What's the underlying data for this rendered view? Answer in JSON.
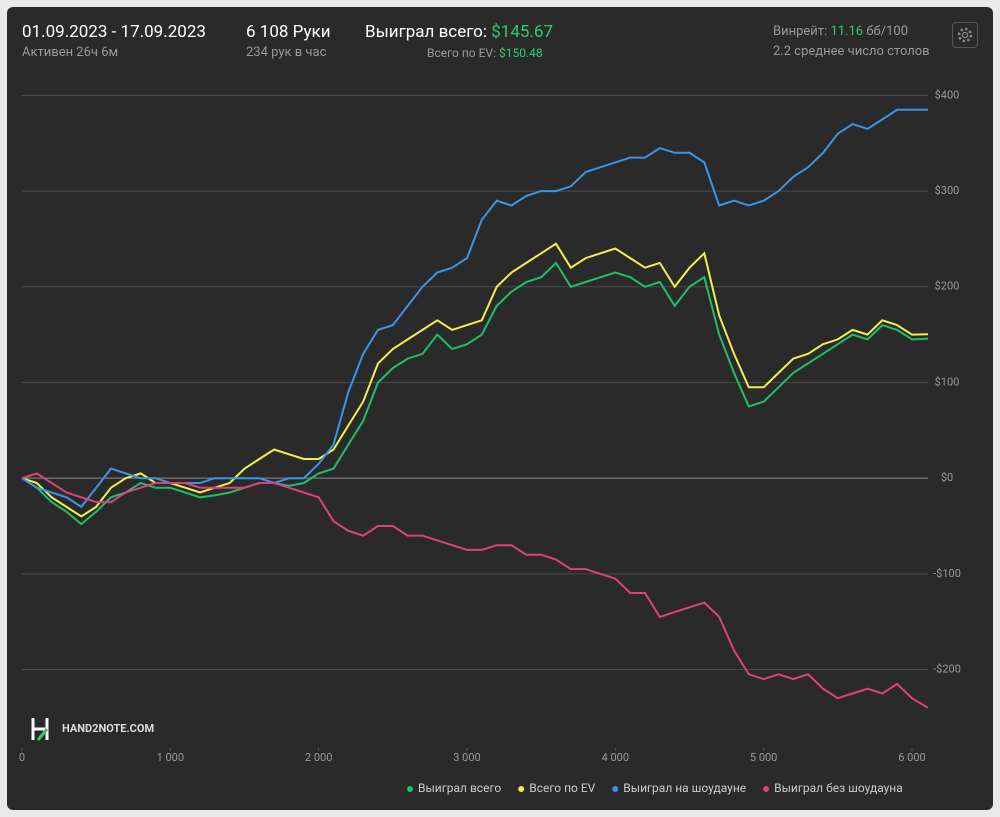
{
  "header": {
    "dates": "01.09.2023 - 17.09.2023",
    "active": "Активен 26ч 6м",
    "hands": "6 108 Руки",
    "hands_per_hour": "234 рук в час",
    "won_label": "Выиграл всего:",
    "won_value": "$145.67",
    "ev_label": "Всего по EV:",
    "ev_value": "$150.48",
    "winrate_label": "Винрейт:",
    "winrate_value": "11.16",
    "winrate_unit": "бб/100",
    "tables": "2.2 среднее число столов",
    "logo": "HAND2NOTE.COM"
  },
  "chart_data": {
    "type": "line",
    "x": [
      0,
      100,
      200,
      300,
      400,
      500,
      600,
      700,
      800,
      900,
      1000,
      1100,
      1200,
      1300,
      1400,
      1500,
      1600,
      1700,
      1800,
      1900,
      2000,
      2100,
      2200,
      2300,
      2400,
      2500,
      2600,
      2700,
      2800,
      2900,
      3000,
      3100,
      3200,
      3300,
      3400,
      3500,
      3600,
      3700,
      3800,
      3900,
      4000,
      4100,
      4200,
      4300,
      4400,
      4500,
      4600,
      4700,
      4800,
      4900,
      5000,
      5100,
      5200,
      5300,
      5400,
      5500,
      5600,
      5700,
      5800,
      5900,
      6000,
      6108
    ],
    "series": [
      {
        "name": "Выиграл всего",
        "color": "#1fbf6a",
        "values": [
          0,
          -10,
          -25,
          -35,
          -48,
          -35,
          -20,
          -15,
          -5,
          -10,
          -10,
          -15,
          -20,
          -18,
          -15,
          -10,
          -5,
          -5,
          -8,
          -5,
          5,
          10,
          35,
          60,
          100,
          115,
          125,
          130,
          150,
          135,
          140,
          150,
          180,
          195,
          205,
          210,
          225,
          200,
          205,
          210,
          215,
          210,
          200,
          205,
          180,
          200,
          210,
          150,
          110,
          75,
          80,
          95,
          110,
          120,
          130,
          140,
          150,
          145,
          160,
          155,
          145,
          145.67
        ]
      },
      {
        "name": "Всего по EV",
        "color": "#f1f04a",
        "values": [
          0,
          -5,
          -20,
          -30,
          -40,
          -30,
          -10,
          0,
          5,
          -5,
          -5,
          -10,
          -15,
          -10,
          -5,
          10,
          20,
          30,
          25,
          20,
          20,
          30,
          55,
          80,
          120,
          135,
          145,
          155,
          165,
          155,
          160,
          165,
          200,
          215,
          225,
          235,
          245,
          220,
          230,
          235,
          240,
          230,
          220,
          225,
          200,
          220,
          235,
          170,
          130,
          95,
          95,
          110,
          125,
          130,
          140,
          145,
          155,
          150,
          165,
          160,
          150,
          150.48
        ]
      },
      {
        "name": "Выиграл на шоудауне",
        "color": "#3b94e8",
        "values": [
          0,
          -10,
          -15,
          -20,
          -30,
          -10,
          10,
          5,
          0,
          0,
          -5,
          -5,
          -5,
          0,
          0,
          0,
          0,
          -5,
          0,
          0,
          15,
          35,
          90,
          130,
          155,
          160,
          180,
          200,
          215,
          220,
          230,
          270,
          290,
          285,
          295,
          300,
          300,
          305,
          320,
          325,
          330,
          335,
          335,
          345,
          340,
          340,
          330,
          285,
          290,
          285,
          290,
          300,
          315,
          325,
          340,
          360,
          370,
          365,
          375,
          385,
          385,
          385
        ]
      },
      {
        "name": "Выиграл без шоудауна",
        "color": "#e0407a",
        "values": [
          0,
          5,
          -5,
          -15,
          -20,
          -25,
          -25,
          -15,
          -10,
          -5,
          -5,
          -5,
          -10,
          -10,
          -10,
          -10,
          -5,
          -5,
          -10,
          -15,
          -20,
          -45,
          -55,
          -60,
          -50,
          -50,
          -60,
          -60,
          -65,
          -70,
          -75,
          -75,
          -70,
          -70,
          -80,
          -80,
          -85,
          -95,
          -95,
          -100,
          -105,
          -120,
          -120,
          -145,
          -140,
          -135,
          -130,
          -145,
          -180,
          -205,
          -210,
          -205,
          -210,
          -205,
          -220,
          -230,
          -225,
          -220,
          -225,
          -215,
          -230,
          -240
        ]
      }
    ],
    "xlim": [
      0,
      6108
    ],
    "ylim": [
      -282,
      413
    ],
    "xticks": [
      0,
      {
        "value": 1000,
        "label": "1 000"
      },
      {
        "value": 2000,
        "label": "2 000"
      },
      {
        "value": 3000,
        "label": "3 000"
      },
      {
        "value": 4000,
        "label": "4 000"
      },
      {
        "value": 5000,
        "label": "5 000"
      },
      {
        "value": 6000,
        "label": "6 000"
      }
    ],
    "yticks": [
      {
        "value": -200,
        "label": "-$200"
      },
      {
        "value": -100,
        "label": "-$100"
      },
      {
        "value": 0,
        "label": "$0"
      },
      {
        "value": 100,
        "label": "$100"
      },
      {
        "value": 200,
        "label": "$200"
      },
      {
        "value": 300,
        "label": "$300"
      },
      {
        "value": 400,
        "label": "$400"
      }
    ],
    "grid": true
  }
}
